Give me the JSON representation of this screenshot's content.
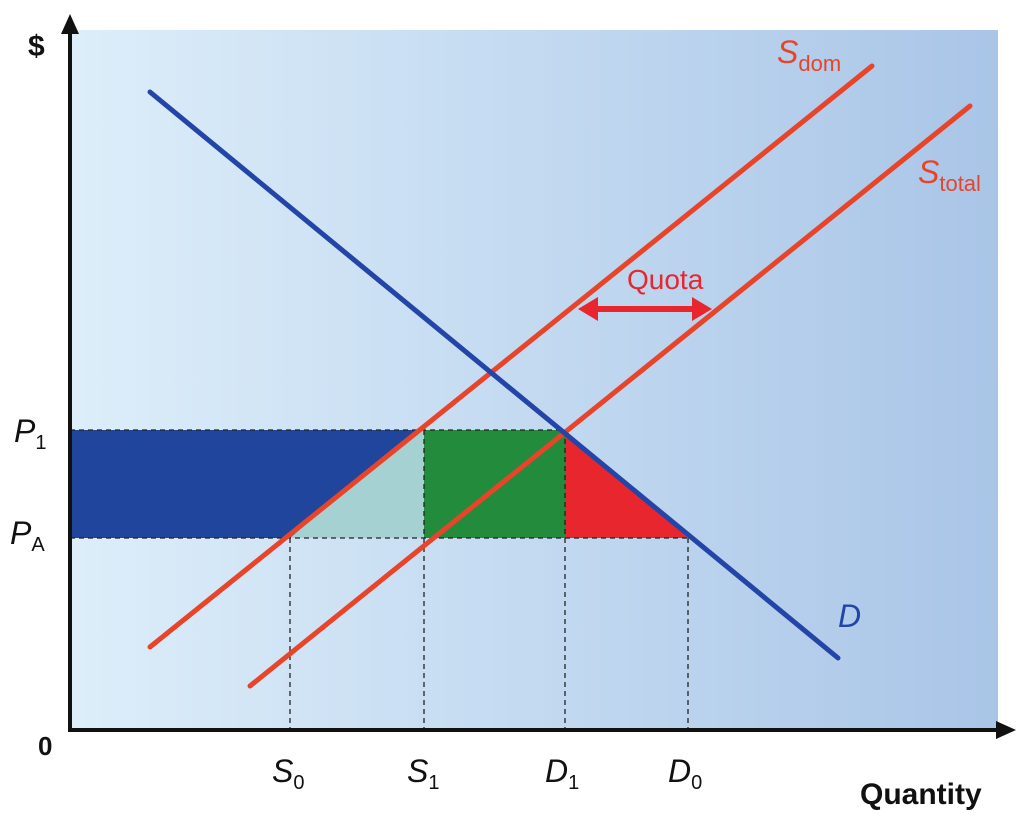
{
  "chart_data": {
    "type": "supply-demand-diagram",
    "title": "",
    "axes": {
      "y_label": "$",
      "x_label": "Quantity",
      "origin_label": "0"
    },
    "price_levels": [
      {
        "name": "P1",
        "base": "P",
        "sub": "1"
      },
      {
        "name": "PA",
        "base": "P",
        "sub": "A"
      }
    ],
    "quantity_levels": [
      {
        "name": "S0",
        "base": "S",
        "sub": "0"
      },
      {
        "name": "S1",
        "base": "S",
        "sub": "1"
      },
      {
        "name": "D1",
        "base": "D",
        "sub": "1"
      },
      {
        "name": "D0",
        "base": "D",
        "sub": "0"
      }
    ],
    "curves": [
      {
        "name": "D",
        "label_base": "D",
        "label_sub": ""
      },
      {
        "name": "S_dom",
        "label_base": "S",
        "label_sub": "dom"
      },
      {
        "name": "S_total",
        "label_base": "S",
        "label_sub": "total"
      }
    ],
    "annotations": {
      "quota": "Quota"
    },
    "colors": {
      "demand": "#2445a8",
      "supply": "#e8442a",
      "quota_arrow": "#e8262e",
      "region_blue": "#1f459c",
      "region_teal": "#a6d1d2",
      "region_green": "#228b3c",
      "region_red": "#e8262e",
      "bg_left": "#ddeefa",
      "bg_right": "#a9c5e7"
    }
  }
}
